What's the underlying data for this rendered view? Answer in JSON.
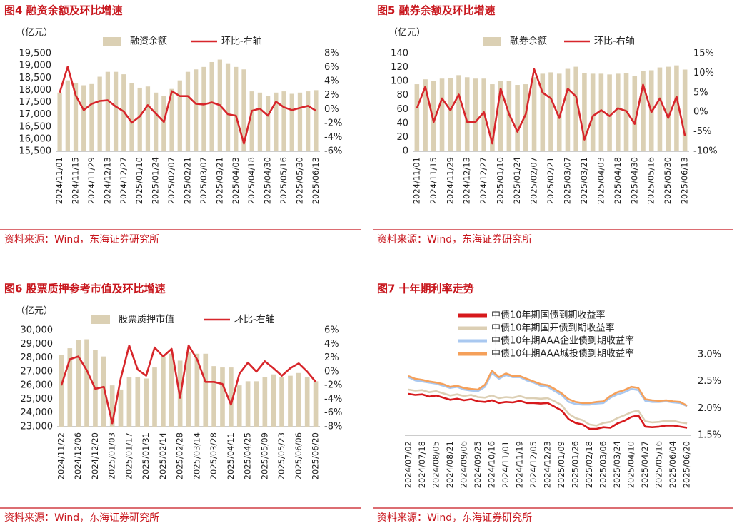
{
  "chart_data": [
    {
      "type": "combo",
      "title": "图4  融资余额及环比增速",
      "y_label": "（亿元）",
      "source": "资料来源：Wind，东海证券研究所",
      "categories": [
        "2024/11/01",
        null,
        "2024/11/15",
        null,
        "2024/11/29",
        null,
        "2024/12/13",
        null,
        "2024/12/27",
        null,
        "2025/01/10",
        null,
        "2025/01/24",
        null,
        "2025/02/07",
        null,
        "2025/02/21",
        null,
        "2025/03/07",
        null,
        "2025/03/21",
        null,
        "2025/04/03",
        null,
        "2025/04/18",
        null,
        "2025/04/30",
        null,
        "2025/05/16",
        null,
        "2025/05/30",
        null,
        "2025/06/13"
      ],
      "series": [
        {
          "name": "融资余额",
          "color": "#dbd0b4",
          "values": [
            17900,
            18400,
            18300,
            18200,
            18250,
            18550,
            18750,
            18750,
            18650,
            18300,
            18100,
            18150,
            17900,
            17750,
            18050,
            18400,
            18750,
            18850,
            18950,
            19150,
            19250,
            19100,
            18950,
            18850,
            17950,
            17900,
            17750,
            17900,
            17950,
            17850,
            17900,
            17950,
            18000
          ]
        },
        {
          "name": "环比-右轴",
          "color": "#d7262b",
          "axis": "y2",
          "values": [
            2.4,
            6.1,
            2.0,
            -0.1,
            0.8,
            1.2,
            1.3,
            0.4,
            -0.3,
            -1.9,
            -1.0,
            0.6,
            -0.6,
            -1.8,
            2.6,
            1.9,
            1.9,
            0.8,
            0.7,
            1.0,
            0.6,
            -0.7,
            -0.9,
            -4.9,
            -0.2,
            0.1,
            -0.9,
            1.1,
            0.3,
            -0.1,
            0.2,
            0.5,
            -0.2
          ]
        }
      ],
      "ylim": [
        15500,
        19500
      ],
      "yticks": [
        {
          "value": 15500,
          "label": "15,500"
        },
        {
          "value": 16000,
          "label": "16,000"
        },
        {
          "value": 16500,
          "label": "16,500"
        },
        {
          "value": 17000,
          "label": "17,000"
        },
        {
          "value": 17500,
          "label": "17,500"
        },
        {
          "value": 18000,
          "label": "18,000"
        },
        {
          "value": 18500,
          "label": "18,500"
        },
        {
          "value": 19000,
          "label": "19,000"
        },
        {
          "value": 19500,
          "label": "19,500"
        }
      ],
      "y2lim": [
        -6,
        8
      ],
      "y2ticks": [
        {
          "value": -6,
          "label": "-6%"
        },
        {
          "value": -4,
          "label": "-4%"
        },
        {
          "value": -2,
          "label": "-2%"
        },
        {
          "value": 0,
          "label": "0%"
        },
        {
          "value": 2,
          "label": "2%"
        },
        {
          "value": 4,
          "label": "4%"
        },
        {
          "value": 6,
          "label": "6%"
        },
        {
          "value": 8,
          "label": "8%"
        }
      ]
    },
    {
      "type": "combo",
      "title": "图5  融券余额及环比增速",
      "y_label": "（亿元）",
      "source": "资料来源：Wind，东海证券研究所",
      "categories": [
        "2024/11/01",
        null,
        "2024/11/15",
        null,
        "2024/11/29",
        null,
        "2024/12/13",
        null,
        "2024/12/27",
        null,
        "2025/01/10",
        null,
        "2025/01/24",
        null,
        "2025/02/07",
        null,
        "2025/02/21",
        null,
        "2025/03/07",
        null,
        "2025/03/21",
        null,
        "2025/04/03",
        null,
        "2025/04/18",
        null,
        "2025/04/30",
        null,
        "2025/05/16",
        null,
        "2025/05/30",
        null,
        "2025/06/13"
      ],
      "series": [
        {
          "name": "融券余额",
          "color": "#dbd0b4",
          "values": [
            96,
            103,
            101,
            104,
            105,
            109,
            106,
            104,
            104,
            96,
            101,
            101,
            95,
            96,
            106,
            111,
            113,
            111,
            118,
            121,
            112,
            111,
            111,
            110,
            111,
            112,
            108,
            115,
            116,
            120,
            121,
            123,
            117
          ]
        },
        {
          "name": "环比-右轴",
          "color": "#d7262b",
          "axis": "y2",
          "values": [
            1,
            6.5,
            -2.5,
            3.5,
            0.5,
            4.5,
            -2.5,
            -2.5,
            0,
            -8,
            6,
            -0.5,
            -5,
            -0.5,
            11,
            5,
            3.5,
            -1.5,
            6,
            4,
            -7,
            -1,
            0.5,
            -1,
            1,
            0.3,
            -3,
            7,
            0,
            3.5,
            -1.5,
            4,
            -6
          ]
        }
      ],
      "ylim": [
        0,
        140
      ],
      "yticks": [
        0,
        20,
        40,
        60,
        80,
        100,
        120,
        140
      ],
      "y2lim": [
        -10,
        15
      ],
      "y2ticks": [
        {
          "value": -10,
          "label": "-10%"
        },
        {
          "value": -5,
          "label": "-5%"
        },
        {
          "value": 0,
          "label": "0%"
        },
        {
          "value": 5,
          "label": "5%"
        },
        {
          "value": 10,
          "label": "10%"
        },
        {
          "value": 15,
          "label": "15%"
        }
      ]
    },
    {
      "type": "combo",
      "title": "图6  股票质押参考市值及环比增速",
      "y_label": "（亿元）",
      "source": "资料来源：Wind，东海证券研究所",
      "categories": [
        "2024/11/22",
        null,
        "2024/12/06",
        null,
        "2024/12/20",
        null,
        "2025/01/03",
        null,
        "2025/01/17",
        null,
        "2025/01/31",
        null,
        "2025/02/14",
        null,
        "2025/02/28",
        null,
        "2025/03/14",
        null,
        "2025/03/28",
        null,
        "2025/04/11",
        null,
        "2025/04/25",
        null,
        "2025/05/09",
        null,
        "2025/05/23",
        null,
        "2025/06/06",
        null,
        "2025/06/20"
      ],
      "series": [
        {
          "name": "股票质押市值",
          "color": "#dbd0b4",
          "values": [
            28200,
            28700,
            29300,
            29350,
            28600,
            28100,
            26000,
            25700,
            26600,
            26600,
            26500,
            27300,
            28100,
            28300,
            27800,
            28400,
            28300,
            28300,
            27400,
            27300,
            27300,
            26000,
            26300,
            26300,
            26600,
            26800,
            26600,
            26700,
            26900,
            26600,
            26300
          ]
        },
        {
          "name": "环比-右轴",
          "color": "#d7262b",
          "axis": "y2",
          "values": [
            -2,
            1.8,
            2.2,
            0.2,
            -2.5,
            -2.2,
            -7.5,
            -1,
            3.8,
            0.3,
            -0.6,
            3.5,
            2.2,
            3.3,
            -3.8,
            3.8,
            1.8,
            -1.5,
            -1.5,
            -1.8,
            -4.8,
            -0.3,
            1.3,
            0,
            1.5,
            0.5,
            -0.6,
            0.5,
            1.2,
            0,
            -1.5
          ]
        }
      ],
      "ylim": [
        23000,
        30000
      ],
      "yticks": [
        {
          "value": 23000,
          "label": "23,000"
        },
        {
          "value": 24000,
          "label": "24,000"
        },
        {
          "value": 25000,
          "label": "25,000"
        },
        {
          "value": 26000,
          "label": "26,000"
        },
        {
          "value": 27000,
          "label": "27,000"
        },
        {
          "value": 28000,
          "label": "28,000"
        },
        {
          "value": 29000,
          "label": "29,000"
        },
        {
          "value": 30000,
          "label": "30,000"
        }
      ],
      "y2lim": [
        -8,
        6
      ],
      "y2ticks": [
        {
          "value": -8,
          "label": "-8%"
        },
        {
          "value": -6,
          "label": "-6%"
        },
        {
          "value": -4,
          "label": "-4%"
        },
        {
          "value": -2,
          "label": "-2%"
        },
        {
          "value": 0,
          "label": "0%"
        },
        {
          "value": 2,
          "label": "2%"
        },
        {
          "value": 4,
          "label": "4%"
        },
        {
          "value": 6,
          "label": "6%"
        }
      ]
    },
    {
      "type": "line",
      "title": "图7  十年期利率走势",
      "source": "资料来源：Wind，东海证券研究所",
      "y_axis_position": "right",
      "categories": [
        "2024/07/02",
        null,
        "2024/07/18",
        null,
        "2024/08/05",
        null,
        "2024/08/21",
        null,
        "2024/09/06",
        null,
        "2024/09/25",
        null,
        "2024/10/16",
        null,
        "2024/11/01",
        null,
        "2024/11/19",
        null,
        "2024/12/05",
        null,
        "2024/12/23",
        null,
        "2025/01/09",
        null,
        "2025/01/26",
        null,
        "2025/02/18",
        null,
        "2025/03/06",
        null,
        "2025/03/24",
        null,
        "2025/04/10",
        null,
        "2025/04/27",
        null,
        "2025/05/16",
        null,
        "2025/06/04",
        null,
        "2025/06/20"
      ],
      "series": [
        {
          "name": "中债10年期国债到期收益率",
          "color": "#d7191c",
          "values": [
            2.27,
            2.25,
            2.26,
            2.22,
            2.24,
            2.2,
            2.16,
            2.18,
            2.15,
            2.17,
            2.13,
            2.12,
            2.15,
            2.1,
            2.12,
            2.11,
            2.14,
            2.1,
            2.1,
            2.09,
            2.1,
            2.03,
            1.96,
            1.8,
            1.73,
            1.7,
            1.62,
            1.62,
            1.65,
            1.64,
            1.72,
            1.77,
            1.84,
            1.87,
            1.66,
            1.65,
            1.66,
            1.68,
            1.68,
            1.66,
            1.64
          ]
        },
        {
          "name": "中债10年期国开债到期收益率",
          "color": "#dccfb4",
          "values": [
            2.35,
            2.33,
            2.34,
            2.3,
            2.32,
            2.28,
            2.24,
            2.26,
            2.23,
            2.25,
            2.21,
            2.2,
            2.24,
            2.19,
            2.21,
            2.2,
            2.23,
            2.19,
            2.19,
            2.18,
            2.19,
            2.13,
            2.06,
            1.9,
            1.82,
            1.78,
            1.7,
            1.68,
            1.73,
            1.75,
            1.82,
            1.87,
            1.93,
            1.96,
            1.76,
            1.74,
            1.75,
            1.77,
            1.77,
            1.74,
            1.72
          ]
        },
        {
          "name": "中债10年期AAA企业债到期收益率",
          "color": "#a9c8f0",
          "values": [
            2.58,
            2.52,
            2.5,
            2.48,
            2.46,
            2.42,
            2.38,
            2.4,
            2.35,
            2.33,
            2.32,
            2.4,
            2.66,
            2.55,
            2.62,
            2.58,
            2.58,
            2.52,
            2.48,
            2.42,
            2.4,
            2.32,
            2.25,
            2.12,
            2.08,
            2.07,
            2.07,
            2.09,
            2.1,
            2.2,
            2.26,
            2.3,
            2.36,
            2.34,
            2.14,
            2.12,
            2.12,
            2.13,
            2.11,
            2.1,
            2.04
          ]
        },
        {
          "name": "中债10年期AAA城投债到期收益率",
          "color": "#f5a05a",
          "values": [
            2.6,
            2.55,
            2.53,
            2.5,
            2.48,
            2.45,
            2.4,
            2.42,
            2.38,
            2.36,
            2.35,
            2.44,
            2.7,
            2.58,
            2.65,
            2.6,
            2.6,
            2.55,
            2.5,
            2.45,
            2.43,
            2.36,
            2.28,
            2.17,
            2.12,
            2.1,
            2.1,
            2.12,
            2.13,
            2.23,
            2.3,
            2.34,
            2.4,
            2.38,
            2.17,
            2.15,
            2.14,
            2.15,
            2.13,
            2.12,
            2.05
          ]
        }
      ],
      "ylim": [
        1.5,
        3.0
      ],
      "yticks": [
        {
          "value": 1.5,
          "label": "1.5%"
        },
        {
          "value": 2.0,
          "label": "2.0%"
        },
        {
          "value": 2.5,
          "label": "2.5%"
        },
        {
          "value": 3.0,
          "label": "3.0%"
        }
      ]
    }
  ]
}
